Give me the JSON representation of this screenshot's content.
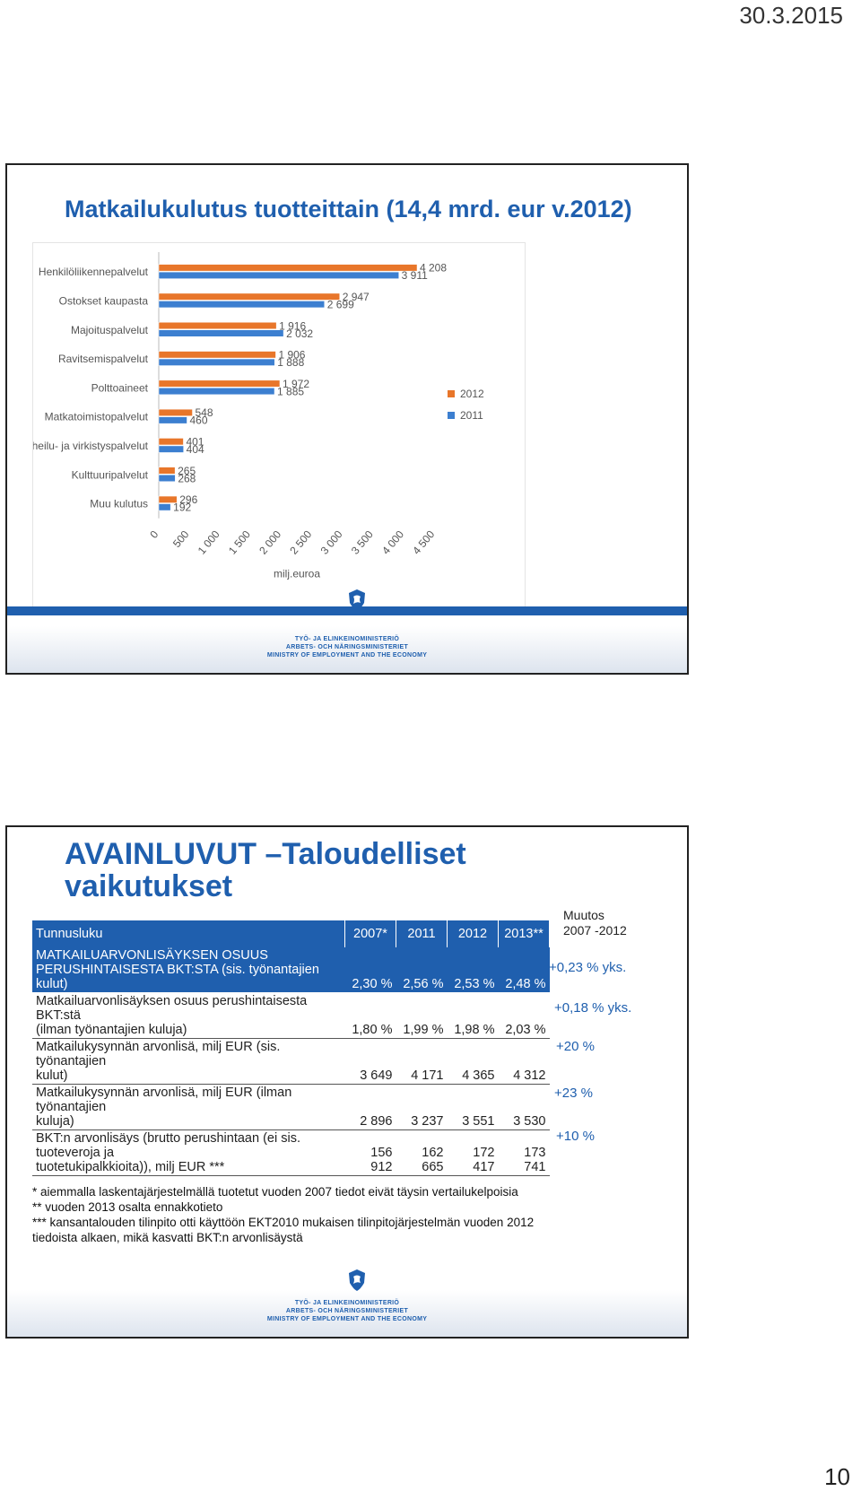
{
  "header": {
    "date": "30.3.2015"
  },
  "page_number": "10",
  "slide1": {
    "title": "Matkailukulutus tuotteittain (14,4 mrd. eur v.2012)",
    "chart_data": {
      "type": "bar",
      "orientation": "horizontal",
      "categories": [
        "Henkilöliikennepalvelut",
        "Ostokset kaupasta",
        "Majoituspalvelut",
        "Ravitsemispalvelut",
        "Polttoaineet",
        "Matkatoimistopalvelut",
        "Urheilu- ja virkistyspalvelut",
        "Kulttuuripalvelut",
        "Muu kulutus"
      ],
      "series": [
        {
          "name": "2012",
          "color": "#e8762a",
          "values": [
            4208,
            2947,
            1916,
            1906,
            1972,
            548,
            401,
            265,
            296
          ],
          "labels": [
            "4 208",
            "2 947",
            "1 916",
            "1 906",
            "1 972",
            "548",
            "401",
            "265",
            "296"
          ]
        },
        {
          "name": "2011",
          "color": "#3c7fd0",
          "values": [
            3911,
            2699,
            2032,
            1888,
            1885,
            460,
            404,
            268,
            192
          ],
          "labels": [
            "3 911",
            "2 699",
            "2 032",
            "1 888",
            "1 885",
            "460",
            "404",
            "268",
            "192"
          ]
        }
      ],
      "xticks": [
        "0",
        "500",
        "1 000",
        "1 500",
        "2 000",
        "2 500",
        "3 000",
        "3 500",
        "4 000",
        "4 500"
      ],
      "xlim": [
        0,
        4500
      ],
      "xlabel": "milj.euroa",
      "legend_position": "right"
    },
    "footer": {
      "ministry_lines": [
        "TYÖ- JA ELINKEINOMINISTERIÖ",
        "ARBETS- OCH NÄRINGSMINISTERIET",
        "MINISTRY OF EMPLOYMENT AND THE ECONOMY"
      ]
    }
  },
  "slide2": {
    "title_line1": "AVAINLUVUT –Taloudelliset",
    "title_line2": "vaikutukset",
    "table": {
      "headers": [
        "Tunnusluku",
        "2007*",
        "2011",
        "2012",
        "2013**"
      ],
      "rows": [
        {
          "label_line1": "MATKAILUARVONLISÄYKSEN OSUUS",
          "label_line2": "PERUSHINTAISESTA BKT:STA (sis. työnantajien kulut)",
          "values": [
            "2,30 %",
            "2,56 %",
            "2,53 %",
            "2,48 %"
          ]
        },
        {
          "label_line1": "Matkailuarvonlisäyksen osuus perushintaisesta BKT:stä",
          "label_line2": "(ilman työnantajien kuluja)",
          "values": [
            "1,80 %",
            "1,99 %",
            "1,98 %",
            "2,03 %"
          ]
        },
        {
          "label_line1": "Matkailukysynnän arvonlisä, milj EUR (sis. työnantajien",
          "label_line2": "kulut)",
          "values": [
            "3 649",
            "4 171",
            "4 365",
            "4 312"
          ]
        },
        {
          "label_line1": "Matkailukysynnän arvonlisä, milj EUR (ilman työnantajien",
          "label_line2": "kuluja)",
          "values": [
            "2 896",
            "3 237",
            "3 551",
            "3 530"
          ]
        },
        {
          "label_line1": "BKT:n arvonlisäys (brutto perushintaan (ei sis. tuoteveroja ja",
          "label_line2": "tuotetukipalkkioita)), milj EUR ***",
          "values": [
            "156 912",
            "162 665",
            "172 417",
            "173 741"
          ]
        }
      ]
    },
    "muutos_label": "Muutos",
    "muutos_period": "2007 -2012",
    "changes": [
      "+0,23 % yks.",
      "+0,18 % yks.",
      "+20 %",
      "+23 %",
      "+10 %"
    ],
    "notes": [
      "* aiemmalla laskentajärjestelmällä tuotetut vuoden 2007 tiedot eivät täysin vertailukelpoisia",
      "** vuoden 2013 osalta ennakkotieto",
      "*** kansantalouden tilinpito otti käyttöön EKT2010 mukaisen tilinpitojärjestelmän vuoden 2012",
      "tiedoista alkaen, mikä kasvatti BKT:n arvonlisäystä"
    ],
    "footer": {
      "ministry_lines": [
        "TYÖ- JA ELINKEINOMINISTERIÖ",
        "ARBETS- OCH NÄRINGSMINISTERIET",
        "MINISTRY OF EMPLOYMENT AND THE ECONOMY"
      ]
    }
  }
}
